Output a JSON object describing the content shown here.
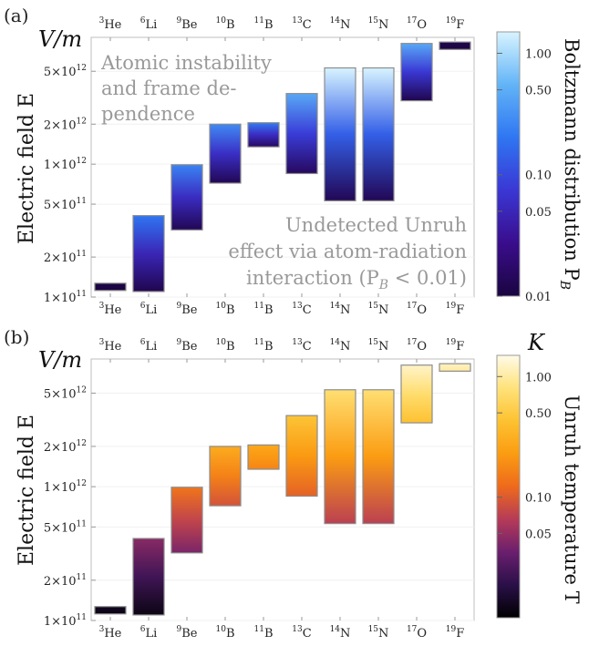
{
  "chart_data": [
    {
      "type": "bar",
      "panel_label": "(a)",
      "unit_label": "V/m",
      "ylabel": "Electric field E",
      "yscale": "log",
      "ylim": [
        100000000000.0,
        9000000000000.0
      ],
      "yticks": [
        {
          "value": 100000000000.0,
          "mant": "1",
          "exp": "11"
        },
        {
          "value": 200000000000.0,
          "mant": "2",
          "exp": "11"
        },
        {
          "value": 500000000000.0,
          "mant": "5",
          "exp": "11"
        },
        {
          "value": 1000000000000.0,
          "mant": "1",
          "exp": "12"
        },
        {
          "value": 2000000000000.0,
          "mant": "2",
          "exp": "12"
        },
        {
          "value": 5000000000000.0,
          "mant": "5",
          "exp": "12"
        }
      ],
      "categories": [
        {
          "mass": "3",
          "element": "He"
        },
        {
          "mass": "6",
          "element": "Li"
        },
        {
          "mass": "9",
          "element": "Be"
        },
        {
          "mass": "10",
          "element": "B"
        },
        {
          "mass": "11",
          "element": "B"
        },
        {
          "mass": "13",
          "element": "C"
        },
        {
          "mass": "14",
          "element": "N"
        },
        {
          "mass": "15",
          "element": "N"
        },
        {
          "mass": "17",
          "element": "O"
        },
        {
          "mass": "19",
          "element": "F"
        }
      ],
      "bars": [
        {
          "low": 112000000000.0,
          "high": 127000000000.0,
          "c_low": 0.01,
          "c_high": 0.011
        },
        {
          "low": 110000000000.0,
          "high": 410000000000.0,
          "c_low": 0.012,
          "c_high": 0.2
        },
        {
          "low": 320000000000.0,
          "high": 990000000000.0,
          "c_low": 0.013,
          "c_high": 0.25
        },
        {
          "low": 720000000000.0,
          "high": 2000000000000.0,
          "c_low": 0.013,
          "c_high": 0.28
        },
        {
          "low": 1350000000000.0,
          "high": 2050000000000.0,
          "c_low": 0.015,
          "c_high": 0.22
        },
        {
          "low": 850000000000.0,
          "high": 3400000000000.0,
          "c_low": 0.015,
          "c_high": 0.45
        },
        {
          "low": 530000000000.0,
          "high": 5300000000000.0,
          "c_low": 0.013,
          "c_high": 1.5
        },
        {
          "low": 530000000000.0,
          "high": 5300000000000.0,
          "c_low": 0.013,
          "c_high": 1.5
        },
        {
          "low": 3000000000000.0,
          "high": 8100000000000.0,
          "c_low": 0.012,
          "c_high": 0.45
        },
        {
          "low": 7300000000000.0,
          "high": 8300000000000.0,
          "c_low": 0.01,
          "c_high": 0.012
        }
      ],
      "annotations": [
        {
          "lines": [
            "Atomic instability",
            "and frame de-",
            "pendence"
          ],
          "color": "#999999"
        },
        {
          "lines": [
            "Undetected Unruh",
            "effect via atom-radiation",
            "interaction (P",
            "B",
            " < 0.01)"
          ],
          "color": "#999999"
        }
      ],
      "colorbar": {
        "label_main": "Boltzmann distribution P",
        "label_sub": "B",
        "scale": "log",
        "range": [
          0.01,
          1.5
        ],
        "ticks": [
          {
            "value": 0.01,
            "label": "0.01"
          },
          {
            "value": 0.05,
            "label": "0.05"
          },
          {
            "value": 0.1,
            "label": "0.10"
          },
          {
            "value": 0.5,
            "label": "0.50"
          },
          {
            "value": 1.0,
            "label": "1.00"
          }
        ],
        "colormap": [
          "#1a0540",
          "#3a0d8c",
          "#3a37d4",
          "#2f76f2",
          "#62b4f7",
          "#d8f4ff"
        ]
      }
    },
    {
      "type": "bar",
      "panel_label": "(b)",
      "unit_label": "V/m",
      "ylabel": "Electric field E",
      "yscale": "log",
      "ylim": [
        100000000000.0,
        9000000000000.0
      ],
      "yticks": [
        {
          "value": 100000000000.0,
          "mant": "1",
          "exp": "11"
        },
        {
          "value": 200000000000.0,
          "mant": "2",
          "exp": "11"
        },
        {
          "value": 500000000000.0,
          "mant": "5",
          "exp": "11"
        },
        {
          "value": 1000000000000.0,
          "mant": "1",
          "exp": "12"
        },
        {
          "value": 2000000000000.0,
          "mant": "2",
          "exp": "12"
        },
        {
          "value": 5000000000000.0,
          "mant": "5",
          "exp": "12"
        }
      ],
      "categories": [
        {
          "mass": "3",
          "element": "He"
        },
        {
          "mass": "6",
          "element": "Li"
        },
        {
          "mass": "9",
          "element": "Be"
        },
        {
          "mass": "10",
          "element": "B"
        },
        {
          "mass": "11",
          "element": "B"
        },
        {
          "mass": "13",
          "element": "C"
        },
        {
          "mass": "14",
          "element": "N"
        },
        {
          "mass": "15",
          "element": "N"
        },
        {
          "mass": "17",
          "element": "O"
        },
        {
          "mass": "19",
          "element": "F"
        }
      ],
      "bars": [
        {
          "low": 112000000000.0,
          "high": 127000000000.0,
          "c_low": 0.012,
          "c_high": 0.013
        },
        {
          "low": 110000000000.0,
          "high": 410000000000.0,
          "c_low": 0.012,
          "c_high": 0.045
        },
        {
          "low": 320000000000.0,
          "high": 990000000000.0,
          "c_low": 0.04,
          "c_high": 0.14
        },
        {
          "low": 720000000000.0,
          "high": 2000000000000.0,
          "c_low": 0.09,
          "c_high": 0.3
        },
        {
          "low": 1350000000000.0,
          "high": 2050000000000.0,
          "c_low": 0.17,
          "c_high": 0.28
        },
        {
          "low": 850000000000.0,
          "high": 3400000000000.0,
          "c_low": 0.11,
          "c_high": 0.45
        },
        {
          "low": 530000000000.0,
          "high": 5300000000000.0,
          "c_low": 0.07,
          "c_high": 0.75
        },
        {
          "low": 530000000000.0,
          "high": 5300000000000.0,
          "c_low": 0.07,
          "c_high": 0.75
        },
        {
          "low": 3000000000000.0,
          "high": 8100000000000.0,
          "c_low": 0.42,
          "c_high": 1.25
        },
        {
          "low": 7300000000000.0,
          "high": 8300000000000.0,
          "c_low": 1.0,
          "c_high": 1.2
        }
      ],
      "colorbar": {
        "label_main": "Unruh temperature T",
        "unit": "K",
        "scale": "log",
        "range": [
          0.01,
          1.5
        ],
        "ticks": [
          {
            "value": 0.05,
            "label": "0.05"
          },
          {
            "value": 0.1,
            "label": "0.10"
          },
          {
            "value": 0.5,
            "label": "0.50"
          },
          {
            "value": 1.0,
            "label": "1.00"
          }
        ],
        "colormap": [
          "#000000",
          "#2a1048",
          "#6a1f6e",
          "#b53b58",
          "#ee6a1c",
          "#fb9c12",
          "#fdc231",
          "#ffe27a",
          "#fffbe8"
        ]
      }
    }
  ]
}
